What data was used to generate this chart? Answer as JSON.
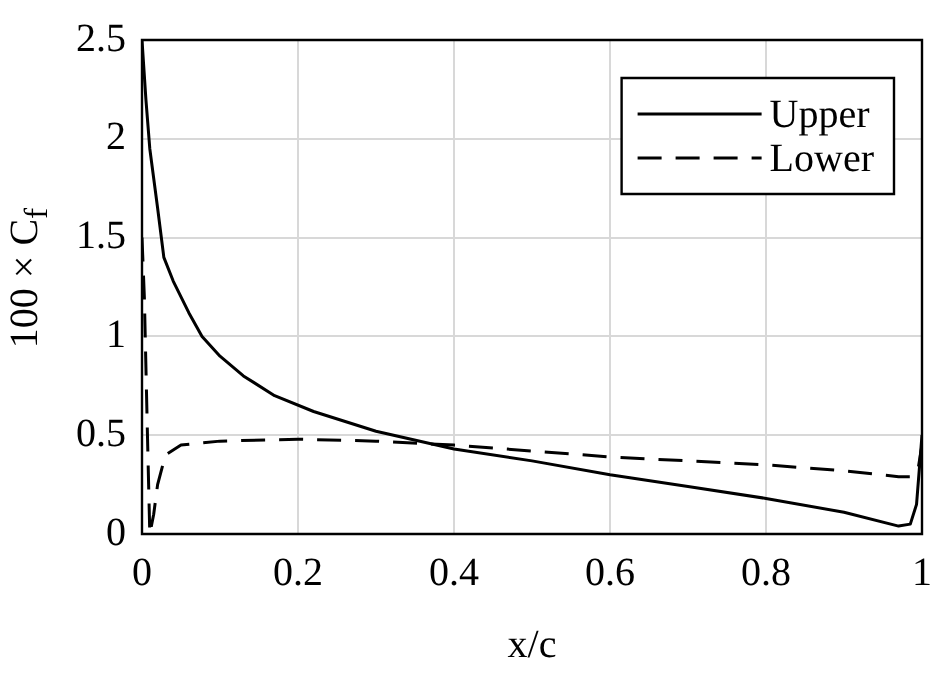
{
  "chart_data": {
    "type": "line",
    "xlabel": "x/c",
    "ylabel": "100 × C$_{f}$",
    "xlim": [
      0,
      1
    ],
    "ylim": [
      0,
      2.5
    ],
    "xticks": [
      0,
      0.2,
      0.4,
      0.6,
      0.8,
      1
    ],
    "yticks": [
      0,
      0.5,
      1,
      1.5,
      2,
      2.5
    ],
    "grid": true,
    "legend": "top right",
    "marker": "none",
    "series": [
      {
        "name": "Upper",
        "color": "#000000",
        "line_style": "solid",
        "x": [
          0,
          0.005,
          0.01,
          0.02,
          0.028,
          0.04,
          0.06,
          0.077,
          0.1,
          0.13,
          0.17,
          0.22,
          0.3,
          0.4,
          0.5,
          0.6,
          0.7,
          0.8,
          0.9,
          0.97,
          0.985,
          0.993,
          1
        ],
        "values": [
          2.5,
          2.2,
          1.95,
          1.65,
          1.4,
          1.28,
          1.12,
          1.0,
          0.9,
          0.8,
          0.7,
          0.62,
          0.52,
          0.43,
          0.37,
          0.3,
          0.24,
          0.18,
          0.11,
          0.04,
          0.05,
          0.15,
          0.5
        ]
      },
      {
        "name": "Lower",
        "color": "#000000",
        "line_style": "dashed",
        "x": [
          0,
          0.003,
          0.007,
          0.01,
          0.015,
          0.02,
          0.03,
          0.05,
          0.1,
          0.2,
          0.3,
          0.4,
          0.5,
          0.6,
          0.7,
          0.8,
          0.9,
          0.97,
          0.985,
          0.995,
          1
        ],
        "values": [
          1.5,
          1.2,
          0.5,
          0.0,
          0.1,
          0.25,
          0.4,
          0.45,
          0.47,
          0.48,
          0.47,
          0.45,
          0.42,
          0.39,
          0.37,
          0.35,
          0.32,
          0.29,
          0.29,
          0.33,
          0.45
        ]
      }
    ]
  }
}
